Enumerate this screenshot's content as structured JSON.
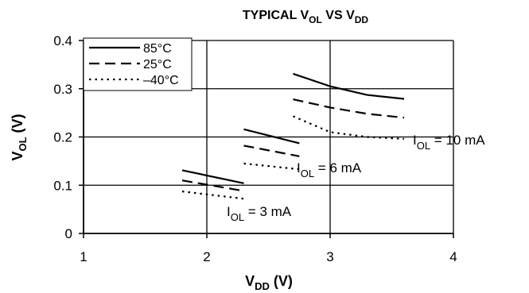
{
  "chart_data": {
    "type": "line",
    "title": {
      "prefix": "TYPICAL V",
      "sub1": "OL",
      "mid": " VS V",
      "sub2": "DD"
    },
    "xlabel": {
      "main": "V",
      "sub": "DD",
      "suffix": " (V)"
    },
    "ylabel": {
      "main": "V",
      "sub": "OL",
      "suffix": " (V)"
    },
    "xlim": [
      1,
      4
    ],
    "ylim": [
      0,
      0.4
    ],
    "xticks": [
      1,
      2,
      3,
      4
    ],
    "yticks": [
      0,
      0.1,
      0.2,
      0.3,
      0.4
    ],
    "xtick_labels": [
      "1",
      "2",
      "3",
      "4"
    ],
    "ytick_labels": [
      "0",
      "0.1",
      "0.2",
      "0.3",
      "0.4"
    ],
    "grid": true,
    "legend_placement": "top-left",
    "series_styles": [
      {
        "name": "85°C",
        "dash": "solid"
      },
      {
        "name": "25°C",
        "dash": "dashed"
      },
      {
        "name": "–40°C",
        "dash": "dotted"
      }
    ],
    "groups": [
      {
        "label": {
          "main": "I",
          "sub": "OL",
          "suffix": " = 3 mA"
        },
        "series": [
          {
            "name": "85°C",
            "x": [
              1.8,
              2.3
            ],
            "y": [
              0.131,
              0.104
            ]
          },
          {
            "name": "25°C",
            "x": [
              1.8,
              2.3
            ],
            "y": [
              0.11,
              0.088
            ]
          },
          {
            "name": "–40°C",
            "x": [
              1.8,
              2.3
            ],
            "y": [
              0.087,
              0.072
            ]
          }
        ]
      },
      {
        "label": {
          "main": "I",
          "sub": "OL",
          "suffix": " = 6 mA"
        },
        "series": [
          {
            "name": "85°C",
            "x": [
              2.3,
              2.75
            ],
            "y": [
              0.216,
              0.187
            ]
          },
          {
            "name": "25°C",
            "x": [
              2.3,
              2.75
            ],
            "y": [
              0.182,
              0.16
            ]
          },
          {
            "name": "–40°C",
            "x": [
              2.3,
              2.75
            ],
            "y": [
              0.145,
              0.133
            ]
          }
        ]
      },
      {
        "label": {
          "main": "I",
          "sub": "OL",
          "suffix": " = 10 mA"
        },
        "series": [
          {
            "name": "85°C",
            "x": [
              2.7,
              3.0,
              3.3,
              3.6
            ],
            "y": [
              0.331,
              0.305,
              0.287,
              0.279
            ]
          },
          {
            "name": "25°C",
            "x": [
              2.7,
              3.0,
              3.3,
              3.6
            ],
            "y": [
              0.278,
              0.261,
              0.248,
              0.24
            ]
          },
          {
            "name": "–40°C",
            "x": [
              2.7,
              3.0,
              3.3,
              3.6
            ],
            "y": [
              0.243,
              0.21,
              0.2,
              0.196
            ]
          }
        ]
      }
    ]
  }
}
